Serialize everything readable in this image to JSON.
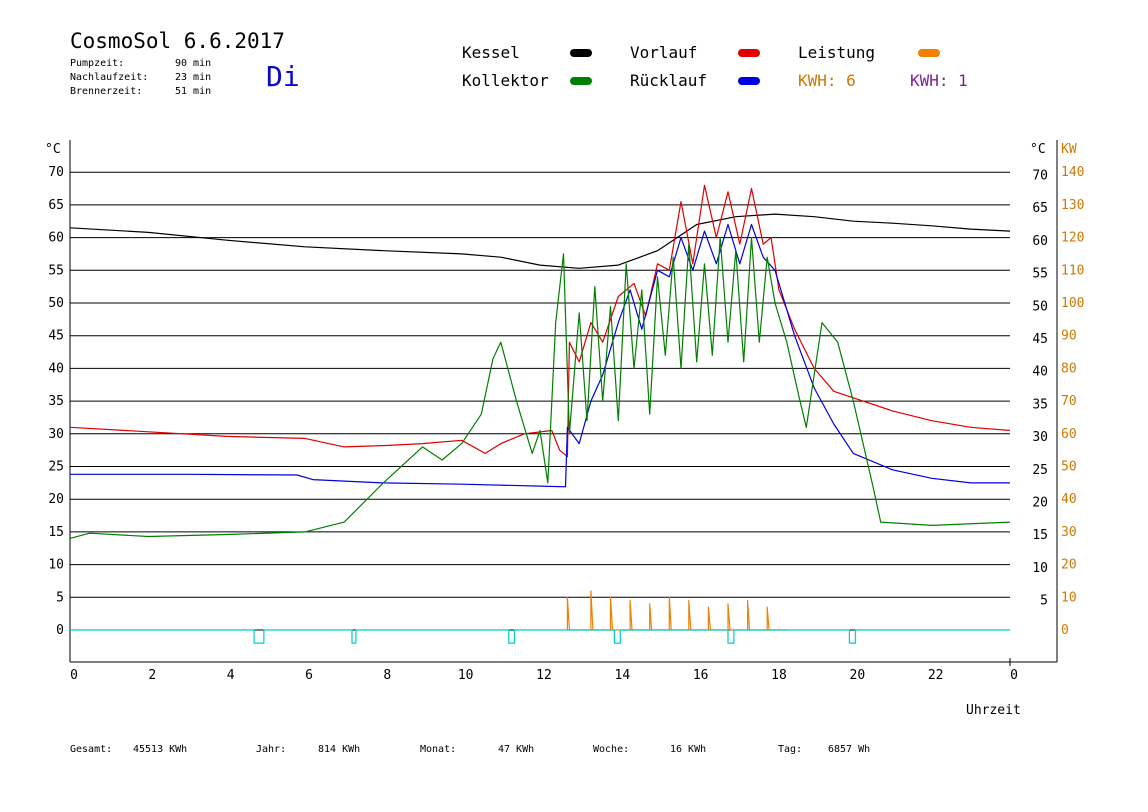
{
  "header": {
    "title": "CosmoSol 6.6.2017",
    "day": "Di",
    "stats": [
      {
        "label": "Pumpzeit:",
        "value": "90 min"
      },
      {
        "label": "Nachlaufzeit:",
        "value": "23 min"
      },
      {
        "label": "Brennerzeit:",
        "value": "51 min"
      }
    ]
  },
  "legend": {
    "items": [
      {
        "label": "Kessel",
        "color": "#000000"
      },
      {
        "label": "Vorlauf",
        "color": "#e00000"
      },
      {
        "label": "Leistung",
        "color": "#f08000"
      },
      {
        "label": "Kollektor",
        "color": "#008000"
      },
      {
        "label": "Rücklauf",
        "color": "#0000e0"
      }
    ],
    "kwh_orange": "KWH: 6",
    "kwh_purple": "KWH: 1",
    "kwh_orange_color": "#d07800",
    "kwh_purple_color": "#8020a0"
  },
  "footer": [
    {
      "label": "Gesamt:",
      "value": "45513 KWh"
    },
    {
      "label": "Jahr:",
      "value": "814 KWh"
    },
    {
      "label": "Monat:",
      "value": "47 KWh"
    },
    {
      "label": "Woche:",
      "value": "16 KWh"
    },
    {
      "label": "Tag:",
      "value": "6857 Wh"
    }
  ],
  "chart_data": {
    "type": "line",
    "xlabel": "Uhrzeit",
    "x_ticks": [
      "0",
      "2",
      "4",
      "6",
      "8",
      "10",
      "12",
      "14",
      "16",
      "18",
      "20",
      "22",
      "0"
    ],
    "xlim": [
      0,
      24
    ],
    "left_axis": {
      "label": "°C",
      "ticks": [
        "0",
        "5",
        "10",
        "15",
        "20",
        "25",
        "30",
        "35",
        "40",
        "45",
        "50",
        "55",
        "60",
        "65",
        "70"
      ],
      "ylim": [
        0,
        70
      ]
    },
    "right_axis_c": {
      "label": "°C",
      "ticks": [
        "5",
        "10",
        "15",
        "20",
        "25",
        "30",
        "35",
        "40",
        "45",
        "50",
        "55",
        "60",
        "65",
        "70"
      ]
    },
    "right_axis_kw": {
      "label": "KW",
      "color": "#d07800",
      "ticks": [
        "0",
        "10",
        "20",
        "30",
        "40",
        "50",
        "60",
        "70",
        "80",
        "90",
        "100",
        "110",
        "120",
        "130",
        "140"
      ]
    },
    "grid": true,
    "series": [
      {
        "name": "Kessel",
        "color": "#000000",
        "points": [
          [
            0,
            61.5
          ],
          [
            2,
            60.8
          ],
          [
            4,
            59.6
          ],
          [
            6,
            58.6
          ],
          [
            8,
            58.0
          ],
          [
            10,
            57.5
          ],
          [
            11,
            57.0
          ],
          [
            12,
            55.8
          ],
          [
            13,
            55.3
          ],
          [
            14,
            55.8
          ],
          [
            15,
            58.0
          ],
          [
            16,
            62.0
          ],
          [
            17,
            63.2
          ],
          [
            18,
            63.6
          ],
          [
            19,
            63.2
          ],
          [
            20,
            62.5
          ],
          [
            21,
            62.2
          ],
          [
            22,
            61.8
          ],
          [
            23,
            61.3
          ],
          [
            24,
            61.0
          ]
        ]
      },
      {
        "name": "Vorlauf",
        "color": "#e00000",
        "points": [
          [
            0,
            31.0
          ],
          [
            2,
            30.3
          ],
          [
            4,
            29.6
          ],
          [
            6,
            29.3
          ],
          [
            7,
            28.0
          ],
          [
            8,
            28.2
          ],
          [
            9,
            28.5
          ],
          [
            10,
            29.0
          ],
          [
            10.6,
            27.0
          ],
          [
            11,
            28.5
          ],
          [
            11.6,
            30.0
          ],
          [
            12.3,
            30.5
          ],
          [
            12.5,
            27.5
          ],
          [
            12.7,
            26.5
          ],
          [
            12.75,
            44.0
          ],
          [
            13,
            41.0
          ],
          [
            13.3,
            47.0
          ],
          [
            13.6,
            44.0
          ],
          [
            14,
            51.0
          ],
          [
            14.4,
            53.0
          ],
          [
            14.7,
            48.0
          ],
          [
            15,
            56.0
          ],
          [
            15.3,
            55.0
          ],
          [
            15.6,
            65.5
          ],
          [
            15.9,
            56.0
          ],
          [
            16.2,
            68.0
          ],
          [
            16.5,
            60.0
          ],
          [
            16.8,
            67.0
          ],
          [
            17.1,
            59.0
          ],
          [
            17.4,
            67.5
          ],
          [
            17.7,
            59.0
          ],
          [
            17.9,
            60.0
          ],
          [
            18.1,
            52.0
          ],
          [
            18.5,
            46.0
          ],
          [
            19,
            40.0
          ],
          [
            19.5,
            36.5
          ],
          [
            20,
            35.5
          ],
          [
            21,
            33.5
          ],
          [
            22,
            32.0
          ],
          [
            23,
            31.0
          ],
          [
            24,
            30.5
          ]
        ]
      },
      {
        "name": "Rücklauf",
        "color": "#0000e0",
        "points": [
          [
            0,
            23.8
          ],
          [
            3,
            23.8
          ],
          [
            5.8,
            23.7
          ],
          [
            6.2,
            23.0
          ],
          [
            8,
            22.5
          ],
          [
            10,
            22.3
          ],
          [
            12,
            22.0
          ],
          [
            12.65,
            21.9
          ],
          [
            12.7,
            31.0
          ],
          [
            13,
            28.5
          ],
          [
            13.3,
            35.0
          ],
          [
            13.6,
            39.0
          ],
          [
            14,
            47.0
          ],
          [
            14.3,
            52.0
          ],
          [
            14.6,
            46.0
          ],
          [
            15,
            55.0
          ],
          [
            15.3,
            54.0
          ],
          [
            15.6,
            60.0
          ],
          [
            15.9,
            55.0
          ],
          [
            16.2,
            61.0
          ],
          [
            16.5,
            56.0
          ],
          [
            16.8,
            62.0
          ],
          [
            17.1,
            56.0
          ],
          [
            17.4,
            62.0
          ],
          [
            17.7,
            57.0
          ],
          [
            18,
            55.0
          ],
          [
            18.5,
            45.0
          ],
          [
            19,
            37.0
          ],
          [
            19.5,
            31.5
          ],
          [
            20,
            27.0
          ],
          [
            21,
            24.5
          ],
          [
            22,
            23.2
          ],
          [
            23,
            22.5
          ],
          [
            24,
            22.5
          ]
        ]
      },
      {
        "name": "Kollektor",
        "color": "#008000",
        "points": [
          [
            0,
            14.0
          ],
          [
            0.5,
            14.8
          ],
          [
            2,
            14.3
          ],
          [
            4,
            14.6
          ],
          [
            6,
            15.0
          ],
          [
            7,
            16.5
          ],
          [
            8,
            22.5
          ],
          [
            9,
            28.0
          ],
          [
            9.5,
            26.0
          ],
          [
            10,
            28.5
          ],
          [
            10.5,
            33.0
          ],
          [
            10.8,
            41.5
          ],
          [
            11,
            44.0
          ],
          [
            11.4,
            35.0
          ],
          [
            11.8,
            27.0
          ],
          [
            12,
            30.5
          ],
          [
            12.2,
            22.5
          ],
          [
            12.4,
            47.0
          ],
          [
            12.6,
            57.5
          ],
          [
            12.75,
            30.0
          ],
          [
            13,
            48.5
          ],
          [
            13.2,
            32.0
          ],
          [
            13.4,
            52.5
          ],
          [
            13.6,
            35.0
          ],
          [
            13.8,
            49.5
          ],
          [
            14,
            32.0
          ],
          [
            14.2,
            56.0
          ],
          [
            14.4,
            40.0
          ],
          [
            14.6,
            52.0
          ],
          [
            14.8,
            33.0
          ],
          [
            15,
            54.0
          ],
          [
            15.2,
            42.0
          ],
          [
            15.4,
            57.0
          ],
          [
            15.6,
            40.0
          ],
          [
            15.8,
            59.0
          ],
          [
            16,
            41.0
          ],
          [
            16.2,
            56.0
          ],
          [
            16.4,
            42.0
          ],
          [
            16.6,
            60.0
          ],
          [
            16.8,
            44.0
          ],
          [
            17,
            58.0
          ],
          [
            17.2,
            41.0
          ],
          [
            17.4,
            60.0
          ],
          [
            17.6,
            44.0
          ],
          [
            17.8,
            57.0
          ],
          [
            18,
            50.0
          ],
          [
            18.3,
            44.0
          ],
          [
            18.6,
            36.0
          ],
          [
            18.8,
            31.0
          ],
          [
            19.2,
            47.0
          ],
          [
            19.6,
            44.0
          ],
          [
            20,
            35.0
          ],
          [
            20.5,
            22.0
          ],
          [
            20.7,
            16.5
          ],
          [
            22,
            16.0
          ],
          [
            24,
            16.5
          ]
        ]
      },
      {
        "name": "Leistung",
        "color": "#f08000",
        "points": [
          [
            12.7,
            0
          ],
          [
            12.7,
            5
          ],
          [
            12.75,
            0
          ],
          [
            13.3,
            0
          ],
          [
            13.3,
            6
          ],
          [
            13.35,
            0
          ],
          [
            13.8,
            0
          ],
          [
            13.8,
            5
          ],
          [
            13.85,
            0
          ],
          [
            14.3,
            0
          ],
          [
            14.3,
            4.5
          ],
          [
            14.35,
            0
          ],
          [
            14.8,
            0
          ],
          [
            14.8,
            4
          ],
          [
            14.85,
            0
          ],
          [
            15.3,
            0
          ],
          [
            15.3,
            5
          ],
          [
            15.35,
            0
          ],
          [
            15.8,
            0
          ],
          [
            15.8,
            4.5
          ],
          [
            15.85,
            0
          ],
          [
            16.3,
            0
          ],
          [
            16.3,
            3.5
          ],
          [
            16.35,
            0
          ],
          [
            16.8,
            0
          ],
          [
            16.8,
            4
          ],
          [
            16.85,
            0
          ],
          [
            17.3,
            0
          ],
          [
            17.3,
            4.5
          ],
          [
            17.35,
            0
          ],
          [
            17.8,
            0
          ],
          [
            17.8,
            3.5
          ],
          [
            17.85,
            0
          ],
          [
            18.3,
            0
          ]
        ]
      },
      {
        "name": "Pumpe",
        "color": "#00cccc",
        "points": [
          [
            0,
            0
          ],
          [
            4.7,
            0
          ],
          [
            4.7,
            -2
          ],
          [
            4.95,
            -2
          ],
          [
            4.95,
            0
          ],
          [
            7.2,
            0
          ],
          [
            7.2,
            -2
          ],
          [
            7.3,
            -2
          ],
          [
            7.3,
            0
          ],
          [
            11.2,
            0
          ],
          [
            11.2,
            -2
          ],
          [
            11.35,
            -2
          ],
          [
            11.35,
            0
          ],
          [
            13.9,
            0
          ],
          [
            13.9,
            -2
          ],
          [
            14.05,
            -2
          ],
          [
            14.05,
            0
          ],
          [
            16.8,
            0
          ],
          [
            16.8,
            -2
          ],
          [
            16.95,
            -2
          ],
          [
            16.95,
            0
          ],
          [
            19.9,
            0
          ],
          [
            19.9,
            -2
          ],
          [
            20.05,
            -2
          ],
          [
            20.05,
            0
          ],
          [
            24,
            0
          ]
        ]
      }
    ]
  }
}
